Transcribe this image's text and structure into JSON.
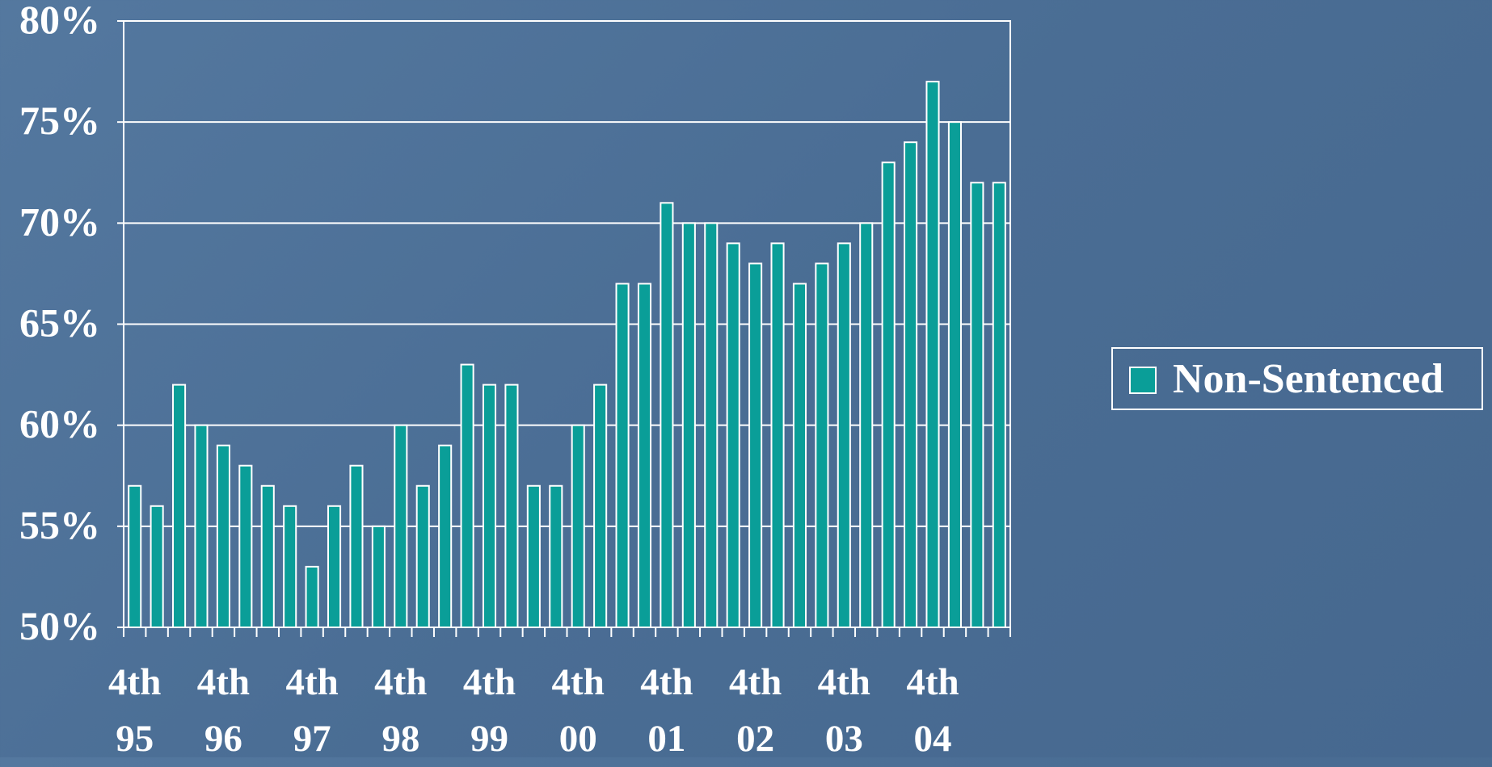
{
  "chart_data": {
    "type": "bar",
    "categories": [
      "4th 95",
      null,
      null,
      null,
      "4th 96",
      null,
      null,
      null,
      "4th 97",
      null,
      null,
      null,
      "4th 98",
      null,
      null,
      null,
      "4th 99",
      null,
      null,
      null,
      "4th 00",
      null,
      null,
      null,
      "4th 01",
      null,
      null,
      null,
      "4th 02",
      null,
      null,
      null,
      "4th 03",
      null,
      null,
      null,
      "4th 04",
      null,
      null,
      null
    ],
    "series": [
      {
        "name": "Non-Sentenced",
        "color": "#0a9e98",
        "values": [
          57,
          56,
          62,
          60,
          59,
          58,
          57,
          56,
          53,
          56,
          58,
          55,
          60,
          57,
          59,
          63,
          62,
          62,
          57,
          57,
          60,
          62,
          67,
          67,
          71,
          70,
          70,
          69,
          68,
          69,
          67,
          68,
          69,
          70,
          73,
          74,
          77,
          75,
          72,
          72
        ]
      }
    ],
    "ylim": [
      50,
      80
    ],
    "yticks": [
      {
        "value": 50,
        "label": "50%"
      },
      {
        "value": 55,
        "label": "55%"
      },
      {
        "value": 60,
        "label": "60%"
      },
      {
        "value": 65,
        "label": "65%"
      },
      {
        "value": 70,
        "label": "70%"
      },
      {
        "value": 75,
        "label": "75%"
      },
      {
        "value": 80,
        "label": "80%"
      }
    ],
    "grid": true,
    "legend": "right"
  }
}
